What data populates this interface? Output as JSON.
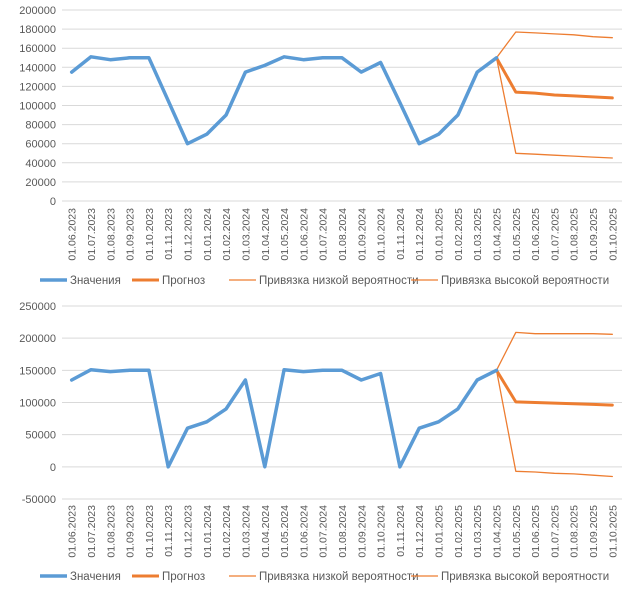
{
  "colors": {
    "values": "#5b9bd5",
    "forecast": "#ed7d31",
    "bound": "#ed7d31",
    "grid": "#d9d9d9",
    "text": "#595959"
  },
  "chart_data": [
    {
      "type": "line",
      "title": "",
      "xlabel": "",
      "ylabel": "",
      "ylim": [
        0,
        200000
      ],
      "yticks": [
        0,
        20000,
        40000,
        60000,
        80000,
        100000,
        120000,
        140000,
        160000,
        180000,
        200000
      ],
      "categories": [
        "01.06.2023",
        "01.07.2023",
        "01.08.2023",
        "01.09.2023",
        "01.10.2023",
        "01.11.2023",
        "01.12.2023",
        "01.01.2024",
        "01.02.2024",
        "01.03.2024",
        "01.04.2024",
        "01.05.2024",
        "01.06.2024",
        "01.07.2024",
        "01.08.2024",
        "01.09.2024",
        "01.10.2024",
        "01.11.2024",
        "01.12.2024",
        "01.01.2025",
        "01.02.2025",
        "01.03.2025",
        "01.04.2025",
        "01.05.2025",
        "01.06.2025",
        "01.07.2025",
        "01.08.2025",
        "01.09.2025",
        "01.10.2025"
      ],
      "series": [
        {
          "name": "Значения",
          "values": [
            135000,
            151000,
            148000,
            150000,
            150000,
            105000,
            60000,
            70000,
            90000,
            135000,
            142000,
            151000,
            148000,
            150000,
            150000,
            135000,
            145000,
            103000,
            60000,
            70000,
            90000,
            135000,
            150000,
            null,
            null,
            null,
            null,
            null,
            null
          ]
        },
        {
          "name": "Прогноз",
          "values": [
            null,
            null,
            null,
            null,
            null,
            null,
            null,
            null,
            null,
            null,
            null,
            null,
            null,
            null,
            null,
            null,
            null,
            null,
            null,
            null,
            null,
            null,
            150000,
            114000,
            113000,
            111000,
            110000,
            109000,
            108000
          ]
        },
        {
          "name": "Привязка низкой вероятности",
          "values": [
            null,
            null,
            null,
            null,
            null,
            null,
            null,
            null,
            null,
            null,
            null,
            null,
            null,
            null,
            null,
            null,
            null,
            null,
            null,
            null,
            null,
            null,
            150000,
            50000,
            49000,
            48000,
            47000,
            46000,
            45000
          ]
        },
        {
          "name": "Привязка высокой вероятности",
          "values": [
            null,
            null,
            null,
            null,
            null,
            null,
            null,
            null,
            null,
            null,
            null,
            null,
            null,
            null,
            null,
            null,
            null,
            null,
            null,
            null,
            null,
            null,
            150000,
            177000,
            176000,
            175000,
            174000,
            172000,
            171000
          ]
        }
      ],
      "legend": "bottom"
    },
    {
      "type": "line",
      "title": "",
      "xlabel": "",
      "ylabel": "",
      "ylim": [
        -50000,
        250000
      ],
      "yticks": [
        -50000,
        0,
        50000,
        100000,
        150000,
        200000,
        250000
      ],
      "categories": [
        "01.06.2023",
        "01.07.2023",
        "01.08.2023",
        "01.09.2023",
        "01.10.2023",
        "01.11.2023",
        "01.12.2023",
        "01.01.2024",
        "01.02.2024",
        "01.03.2024",
        "01.04.2024",
        "01.05.2024",
        "01.06.2024",
        "01.07.2024",
        "01.08.2024",
        "01.09.2024",
        "01.10.2024",
        "01.11.2024",
        "01.12.2024",
        "01.01.2025",
        "01.02.2025",
        "01.03.2025",
        "01.04.2025",
        "01.05.2025",
        "01.06.2025",
        "01.07.2025",
        "01.08.2025",
        "01.09.2025",
        "01.10.2025"
      ],
      "series": [
        {
          "name": "Значения",
          "values": [
            135000,
            151000,
            148000,
            150000,
            150000,
            0,
            60000,
            70000,
            90000,
            135000,
            0,
            151000,
            148000,
            150000,
            150000,
            135000,
            145000,
            0,
            60000,
            70000,
            90000,
            135000,
            150000,
            null,
            null,
            null,
            null,
            null,
            null
          ]
        },
        {
          "name": "Прогноз",
          "values": [
            null,
            null,
            null,
            null,
            null,
            null,
            null,
            null,
            null,
            null,
            null,
            null,
            null,
            null,
            null,
            null,
            null,
            null,
            null,
            null,
            null,
            null,
            150000,
            101000,
            100000,
            99000,
            98000,
            97000,
            96000
          ]
        },
        {
          "name": "Привязка низкой вероятности",
          "values": [
            null,
            null,
            null,
            null,
            null,
            null,
            null,
            null,
            null,
            null,
            null,
            null,
            null,
            null,
            null,
            null,
            null,
            null,
            null,
            null,
            null,
            null,
            150000,
            -7000,
            -8000,
            -10000,
            -11000,
            -13000,
            -15000
          ]
        },
        {
          "name": "Привязка высокой вероятности",
          "values": [
            null,
            null,
            null,
            null,
            null,
            null,
            null,
            null,
            null,
            null,
            null,
            null,
            null,
            null,
            null,
            null,
            null,
            null,
            null,
            null,
            null,
            null,
            150000,
            209000,
            207000,
            207000,
            207000,
            207000,
            206000
          ]
        }
      ],
      "legend": "bottom"
    }
  ]
}
